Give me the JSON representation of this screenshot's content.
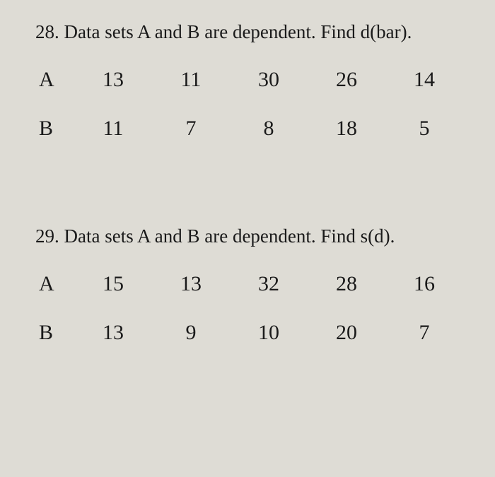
{
  "q28": {
    "prompt": "28. Data sets A and B are dependent. Find d(bar).",
    "rowA": {
      "label": "A",
      "v1": "13",
      "v2": "11",
      "v3": "30",
      "v4": "26",
      "v5": "14"
    },
    "rowB": {
      "label": "B",
      "v1": "11",
      "v2": "7",
      "v3": "8",
      "v4": "18",
      "v5": "5"
    }
  },
  "q29": {
    "prompt": "29. Data sets A and B are dependent. Find s(d).",
    "rowA": {
      "label": "A",
      "v1": "15",
      "v2": "13",
      "v3": "32",
      "v4": "28",
      "v5": "16"
    },
    "rowB": {
      "label": "B",
      "v1": "13",
      "v2": "9",
      "v3": "10",
      "v4": "20",
      "v5": "7"
    }
  }
}
